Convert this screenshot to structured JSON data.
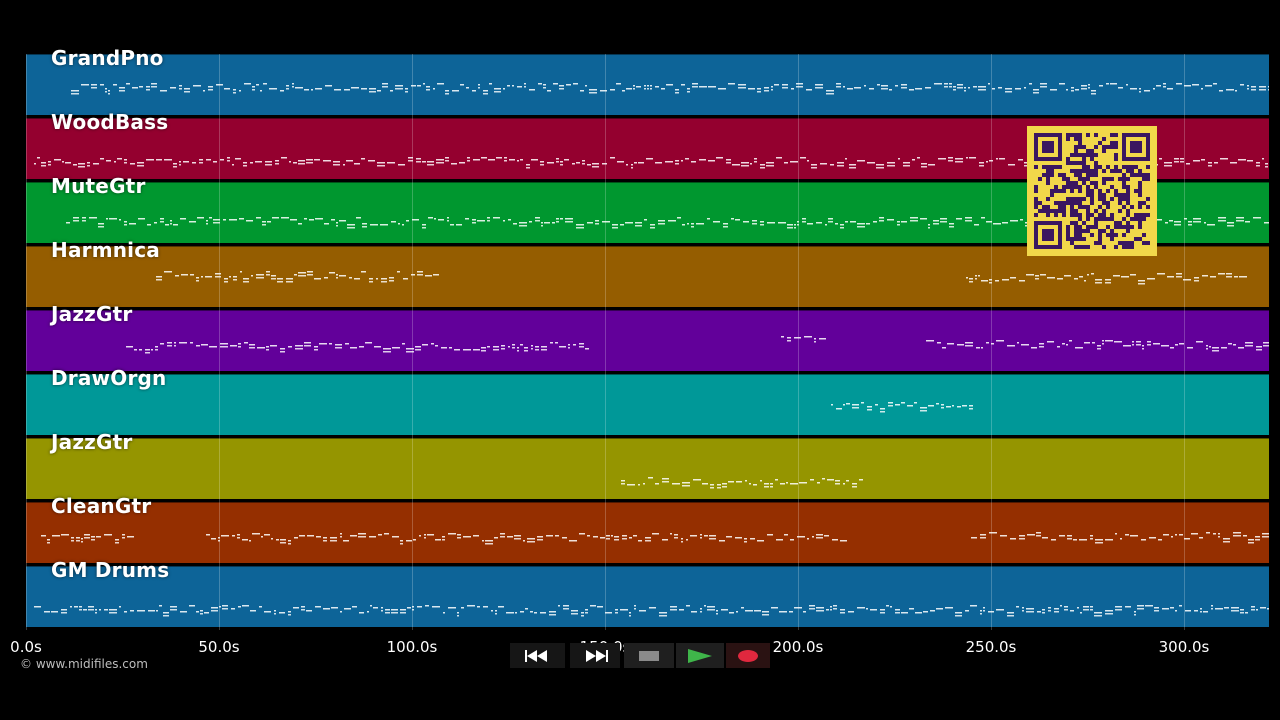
{
  "tracks": [
    {
      "name": "GrandPno",
      "color": "#0d6498"
    },
    {
      "name": "WoodBass",
      "color": "#94002f"
    },
    {
      "name": "MuteGtr",
      "color": "#00972f"
    },
    {
      "name": "Harmnica",
      "color": "#955d00"
    },
    {
      "name": "JazzGtr",
      "color": "#62009a"
    },
    {
      "name": "DrawOrgn",
      "color": "#009898"
    },
    {
      "name": "JazzGtr",
      "color": "#959500"
    },
    {
      "name": "CleanGtr",
      "color": "#952f00"
    },
    {
      "name": "GM Drums",
      "color": "#0d6498"
    }
  ],
  "timeline": {
    "ticks": [
      "0.0s",
      "50.0s",
      "100.0s",
      "150.0s",
      "200.0s",
      "250.0s",
      "300.0s"
    ]
  },
  "copyright": "© www.midifiles.com",
  "transport": {
    "rewind_icon": "rewind-icon",
    "fast_forward_icon": "fast-forward-icon",
    "stop_icon": "stop-icon",
    "play_icon": "play-icon",
    "record_icon": "record-icon",
    "play_color": "#3fb54a",
    "record_color": "#e0283e"
  },
  "qr_color": "#f1d84a"
}
